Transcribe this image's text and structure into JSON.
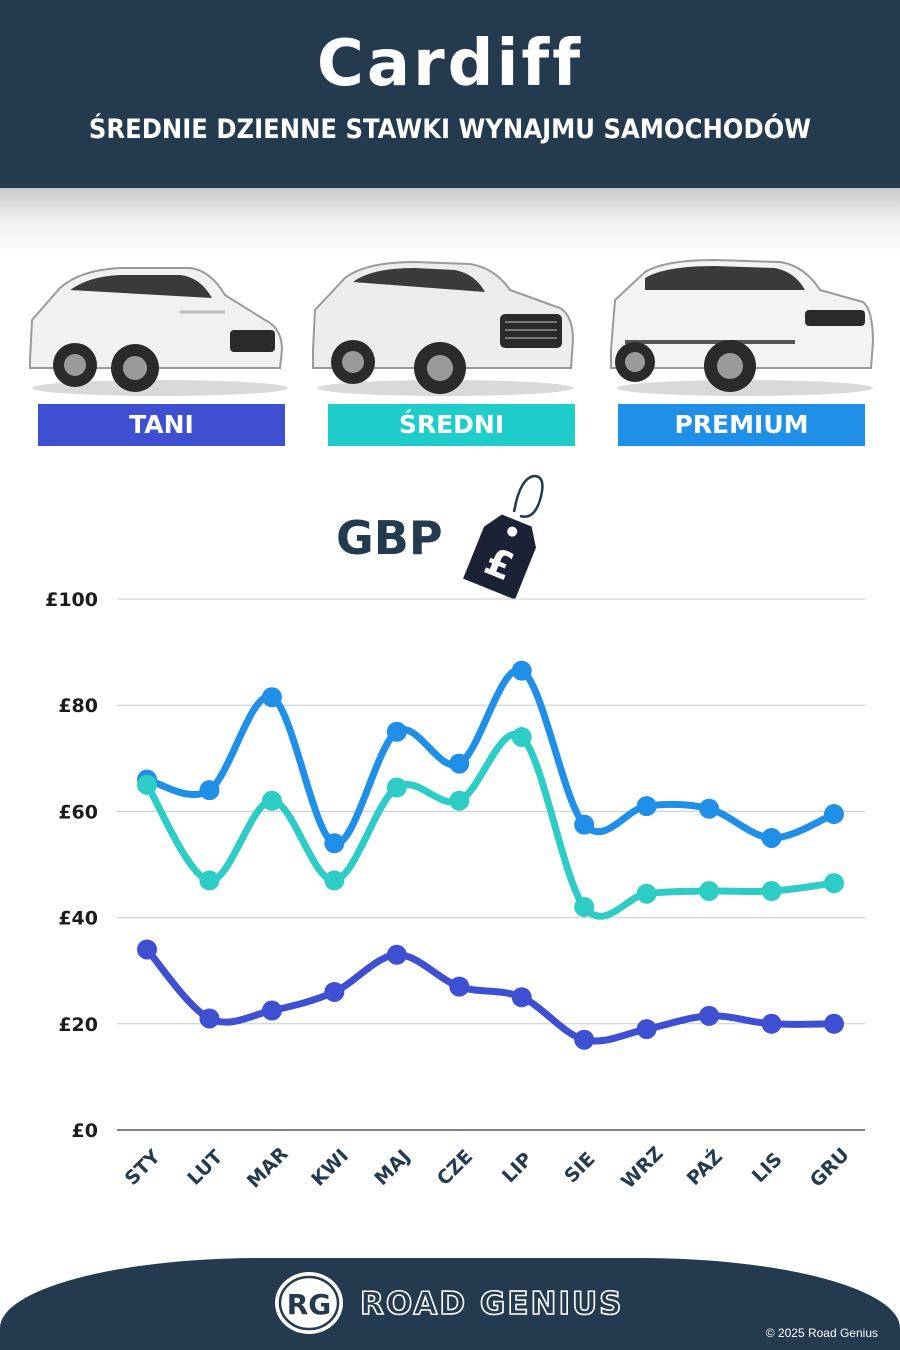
{
  "header": {
    "title": "Cardiff",
    "subtitle": "ŚREDNIE DZIENNE STAWKI WYNAJMU SAMOCHODÓW"
  },
  "categories": [
    {
      "label": "TANI",
      "color": "#3f4fd1"
    },
    {
      "label": "ŚREDNI",
      "color": "#1ecdc9"
    },
    {
      "label": "PREMIUM",
      "color": "#1f8fe8"
    }
  ],
  "currency": {
    "label": "GBP",
    "tag_symbol": "£"
  },
  "chart_data": {
    "type": "line",
    "categories": [
      "STY",
      "LUT",
      "MAR",
      "KWI",
      "MAJ",
      "CZE",
      "LIP",
      "SIE",
      "WRZ",
      "PAŹ",
      "LIS",
      "GRU"
    ],
    "series": [
      {
        "name": "PREMIUM",
        "color": "#1f8fe8",
        "values": [
          66,
          64,
          81.5,
          54,
          75,
          69,
          86.5,
          57.5,
          61,
          60.5,
          55,
          59.5
        ]
      },
      {
        "name": "ŚREDNI",
        "color": "#2dcdc6",
        "values": [
          65,
          47,
          62,
          47,
          64.5,
          62,
          74,
          42,
          44.5,
          45,
          45,
          46.5
        ]
      },
      {
        "name": "TANI",
        "color": "#3f4fd1",
        "values": [
          34,
          21,
          22.5,
          26,
          33,
          27,
          25,
          17,
          19,
          21.5,
          20,
          20
        ]
      }
    ],
    "ylim": [
      0,
      100
    ],
    "yticks": [
      0,
      20,
      40,
      60,
      80,
      100
    ],
    "ytick_labels": [
      "£0",
      "£20",
      "£40",
      "£60",
      "£80",
      "£100"
    ],
    "grid": true
  },
  "footer": {
    "logo_text": "RG",
    "brand": "ROAD GENIUS",
    "copyright": "© 2025 Road Genius"
  }
}
